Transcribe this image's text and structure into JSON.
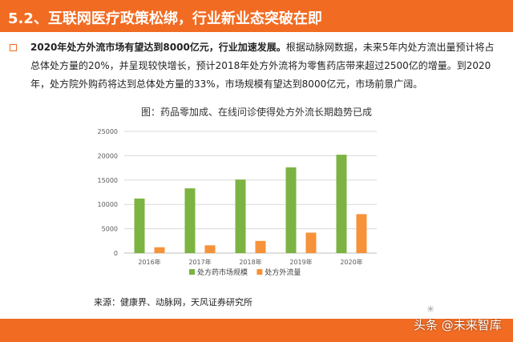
{
  "header": {
    "title": "5.2、互联网医疗政策松绑，行业新业态突破在即"
  },
  "paragraph": {
    "lead": "2020年处方外流市场有望达到8000亿元，行业加速发展。",
    "body": "根据动脉网数据，未来5年内处方流出量预计将占总体处方量的20%，并呈现较快增长，预计2018年处方外流将为零售药店带来超过2500亿的增量。到2020年，处方院外购药将达到总体处方量的33%，市场规模有望达到8000亿元，市场前景广阔。"
  },
  "colors": {
    "brand": "#f26b22",
    "series_green": "#7cb342",
    "series_orange": "#f6923a",
    "grid": "#d9d9d9"
  },
  "source": "来源：健康界、动脉网，天风证券研究所",
  "watermark": "头条 @未来智库",
  "chart_data": {
    "type": "bar",
    "title": "图：药品零加成、在线问诊使得处方外流长期趋势已成",
    "categories": [
      "2016年",
      "2017年",
      "2018年",
      "2019年",
      "2020年"
    ],
    "series": [
      {
        "name": "处方药市场规模",
        "color": "#7cb342",
        "values": [
          11200,
          13300,
          15100,
          17600,
          20200
        ]
      },
      {
        "name": "处方外流量",
        "color": "#f6923a",
        "values": [
          1200,
          1600,
          2500,
          4200,
          8000
        ]
      }
    ],
    "yticks": [
      0,
      5000,
      10000,
      15000,
      20000,
      25000
    ],
    "ylim": [
      0,
      25000
    ],
    "grid": true,
    "legend": "bottom-center"
  }
}
